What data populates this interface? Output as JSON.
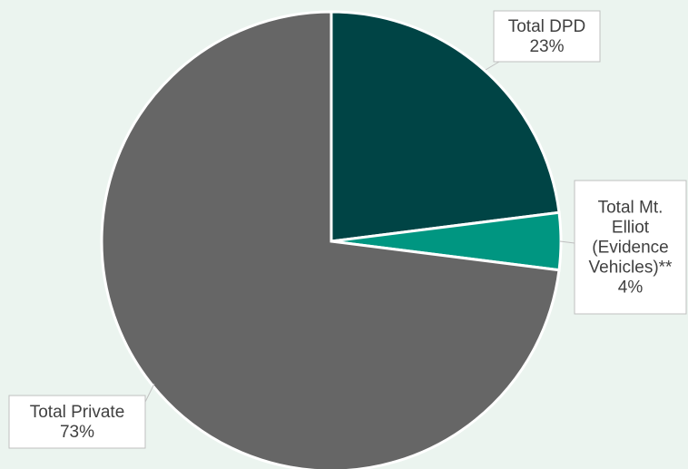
{
  "chart_data": {
    "type": "pie",
    "start_angle_deg": 0,
    "direction": "clockwise",
    "slices": [
      {
        "label": "Total DPD",
        "value": 23,
        "value_label": "23%",
        "label_lines": [
          "Total DPD",
          "23%"
        ],
        "color": "#004445"
      },
      {
        "label": "Total Mt. Elliot (Evidence Vehicles)**",
        "value": 4,
        "value_label": "4%",
        "label_lines": [
          "Total Mt.",
          "Elliot",
          "(Evidence",
          "Vehicles)**",
          "4%"
        ],
        "color": "#009681"
      },
      {
        "label": "Total Private",
        "value": 73,
        "value_label": "73%",
        "label_lines": [
          "Total Private",
          "73%"
        ],
        "color": "#666666"
      }
    ],
    "legend": "none"
  }
}
